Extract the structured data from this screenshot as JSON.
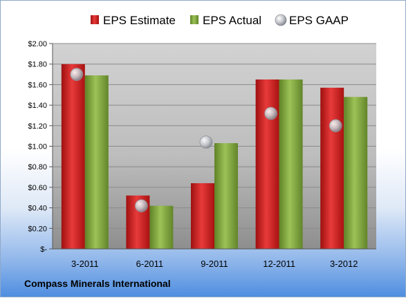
{
  "footer": {
    "company": "Compass Minerals International"
  },
  "colors": {
    "estimate": "#cc1f1f",
    "actual": "#7fa33a",
    "gaap": "#b8bcc2"
  },
  "chart_data": {
    "type": "bar",
    "title": "",
    "xlabel": "",
    "ylabel": "",
    "categories": [
      "3-2011",
      "6-2011",
      "9-2011",
      "12-2011",
      "3-2012"
    ],
    "ylim": [
      0,
      2.0
    ],
    "yticks": [
      {
        "value": 0.0,
        "label": "$-"
      },
      {
        "value": 0.2,
        "label": "$0.20"
      },
      {
        "value": 0.4,
        "label": "$0.40"
      },
      {
        "value": 0.6,
        "label": "$0.60"
      },
      {
        "value": 0.8,
        "label": "$0.80"
      },
      {
        "value": 1.0,
        "label": "$1.00"
      },
      {
        "value": 1.2,
        "label": "$1.20"
      },
      {
        "value": 1.4,
        "label": "$1.40"
      },
      {
        "value": 1.6,
        "label": "$1.60"
      },
      {
        "value": 1.8,
        "label": "$1.80"
      },
      {
        "value": 2.0,
        "label": "$2.00"
      }
    ],
    "grid": true,
    "legend": "top",
    "series": [
      {
        "name": "EPS Estimate",
        "kind": "bar",
        "values": [
          1.8,
          0.52,
          0.64,
          1.65,
          1.57
        ]
      },
      {
        "name": "EPS Actual",
        "kind": "bar",
        "values": [
          1.69,
          0.42,
          1.03,
          1.65,
          1.48
        ]
      },
      {
        "name": "EPS GAAP",
        "kind": "marker",
        "values": [
          1.7,
          0.42,
          1.04,
          1.32,
          1.2
        ]
      }
    ]
  }
}
